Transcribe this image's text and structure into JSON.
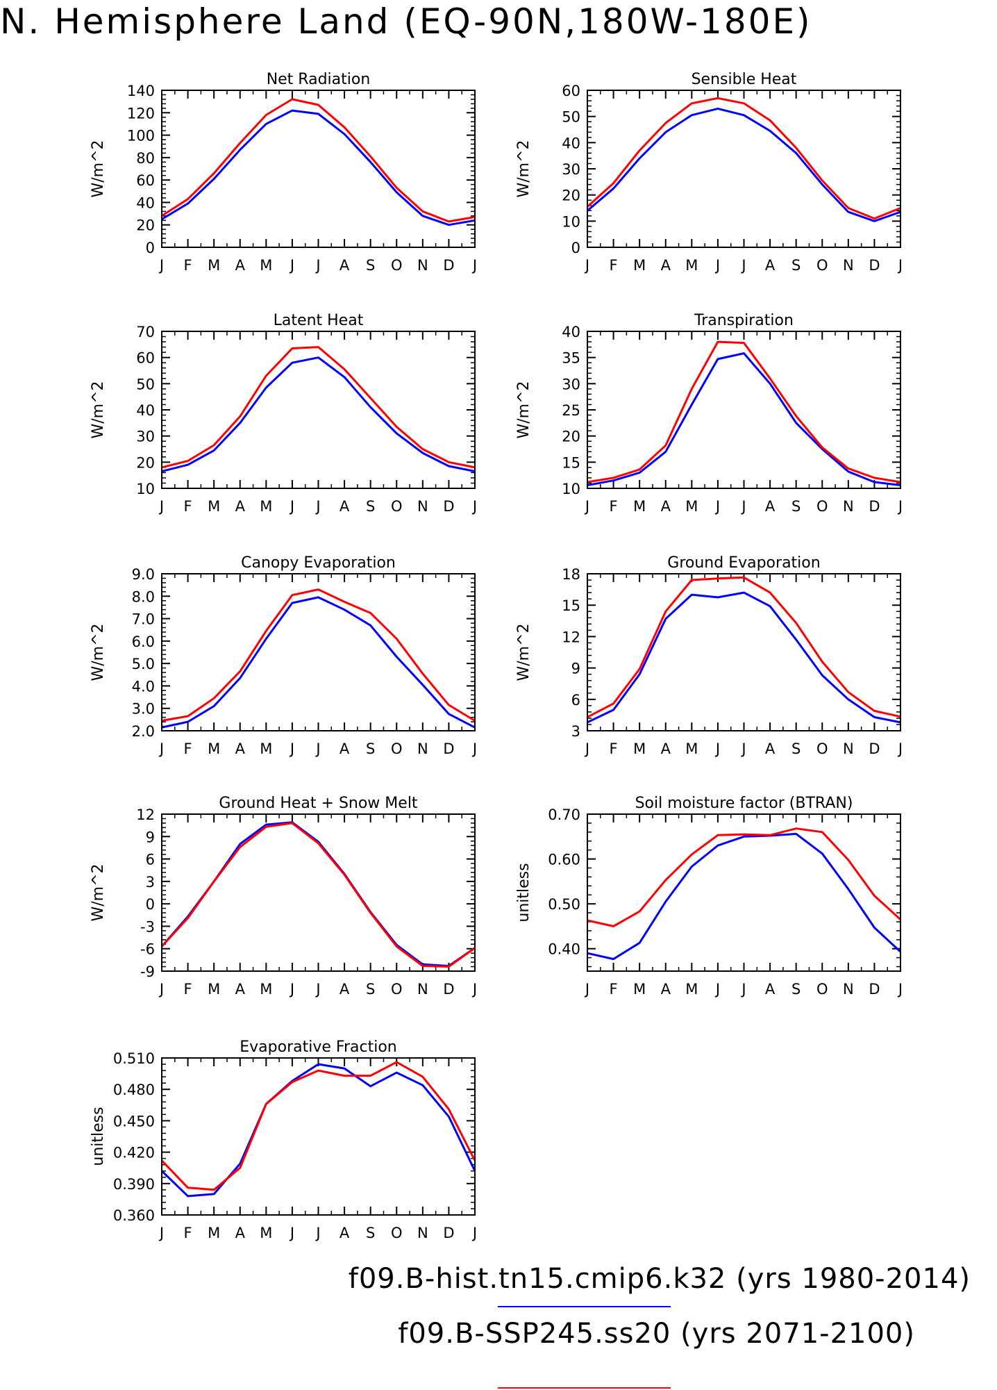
{
  "title": "N. Hemisphere Land (EQ-90N,180W-180E)",
  "legend": [
    {
      "label": "f09.B-hist.tn15.cmip6.k32 (yrs 1980-2014)",
      "color": "#0000ff"
    },
    {
      "label": "f09.B-SSP245.ss20 (yrs 2071-2100)",
      "color": "#ff0000"
    }
  ],
  "colors": {
    "historical": "#0000ff",
    "future": "#ff0000",
    "axis": "#000000"
  },
  "chart_data": [
    {
      "type": "line",
      "title": "Net Radiation",
      "ylabel": "W/m^2",
      "categories": [
        "J",
        "F",
        "M",
        "A",
        "M",
        "J",
        "J",
        "A",
        "S",
        "O",
        "N",
        "D",
        "J"
      ],
      "ylim": [
        0,
        140
      ],
      "yticks": [
        "0",
        "20",
        "40",
        "60",
        "80",
        "100",
        "120",
        "140"
      ],
      "series": [
        {
          "values": [
            25,
            39,
            61,
            87,
            110,
            122,
            119,
            101,
            76,
            49,
            28,
            20,
            24
          ]
        },
        {
          "values": [
            28,
            43,
            66,
            93,
            118,
            132,
            127,
            107,
            81,
            53,
            32,
            23,
            27
          ]
        }
      ]
    },
    {
      "type": "line",
      "title": "Sensible Heat",
      "ylabel": "W/m^2",
      "categories": [
        "J",
        "F",
        "M",
        "A",
        "M",
        "J",
        "J",
        "A",
        "S",
        "O",
        "N",
        "D",
        "J"
      ],
      "ylim": [
        0,
        60
      ],
      "yticks": [
        "0",
        "10",
        "20",
        "30",
        "40",
        "50",
        "60"
      ],
      "series": [
        {
          "values": [
            14,
            22.5,
            34,
            44,
            50.5,
            53,
            50.5,
            44.5,
            36,
            24,
            13.5,
            10,
            13.5
          ]
        },
        {
          "values": [
            15.5,
            24.5,
            37,
            47.5,
            55,
            57,
            55,
            48.5,
            38,
            25.5,
            15,
            11,
            15
          ]
        }
      ]
    },
    {
      "type": "line",
      "title": "Latent Heat",
      "ylabel": "W/m^2",
      "categories": [
        "J",
        "F",
        "M",
        "A",
        "M",
        "J",
        "J",
        "A",
        "S",
        "O",
        "N",
        "D",
        "J"
      ],
      "ylim": [
        10,
        70
      ],
      "yticks": [
        "10",
        "20",
        "30",
        "40",
        "50",
        "60",
        "70"
      ],
      "series": [
        {
          "values": [
            16.5,
            19,
            24.5,
            35,
            48.5,
            58,
            60,
            52.5,
            41,
            31,
            23.5,
            18.5,
            16.5
          ]
        },
        {
          "values": [
            18,
            20.5,
            26.5,
            37.5,
            53,
            63.5,
            64,
            55.5,
            44.5,
            33.5,
            25,
            20,
            18
          ]
        }
      ]
    },
    {
      "type": "line",
      "title": "Transpiration",
      "ylabel": "W/m^2",
      "categories": [
        "J",
        "F",
        "M",
        "A",
        "M",
        "J",
        "J",
        "A",
        "S",
        "O",
        "N",
        "D",
        "J"
      ],
      "ylim": [
        10,
        40
      ],
      "yticks": [
        "10",
        "15",
        "20",
        "25",
        "30",
        "35",
        "40"
      ],
      "series": [
        {
          "values": [
            10.6,
            11.5,
            13,
            17,
            26,
            34.7,
            35.8,
            30,
            22.5,
            17.5,
            13.2,
            11.2,
            10.6
          ]
        },
        {
          "values": [
            11.2,
            12,
            13.6,
            18.2,
            29,
            38,
            37.8,
            31,
            23.8,
            17.8,
            13.8,
            12,
            11.2
          ]
        }
      ]
    },
    {
      "type": "line",
      "title": "Canopy Evaporation",
      "ylabel": "W/m^2",
      "categories": [
        "J",
        "F",
        "M",
        "A",
        "M",
        "J",
        "J",
        "A",
        "S",
        "O",
        "N",
        "D",
        "J"
      ],
      "ylim": [
        2.0,
        9.0
      ],
      "yticks": [
        "2.0",
        "3.0",
        "4.0",
        "5.0",
        "6.0",
        "7.0",
        "8.0",
        "9.0"
      ],
      "series": [
        {
          "values": [
            2.15,
            2.4,
            3.1,
            4.35,
            6.1,
            7.7,
            7.95,
            7.4,
            6.7,
            5.3,
            4.05,
            2.75,
            2.15
          ]
        },
        {
          "values": [
            2.45,
            2.65,
            3.45,
            4.65,
            6.45,
            8.05,
            8.3,
            7.75,
            7.25,
            6.1,
            4.55,
            3.15,
            2.45
          ]
        }
      ]
    },
    {
      "type": "line",
      "title": "Ground Evaporation",
      "ylabel": "W/m^2",
      "categories": [
        "J",
        "F",
        "M",
        "A",
        "M",
        "J",
        "J",
        "A",
        "S",
        "O",
        "N",
        "D",
        "J"
      ],
      "ylim": [
        3,
        18
      ],
      "yticks": [
        "3",
        "6",
        "9",
        "12",
        "15",
        "18"
      ],
      "series": [
        {
          "values": [
            3.8,
            5,
            8.4,
            13.7,
            16,
            15.75,
            16.2,
            14.9,
            11.7,
            8.3,
            6,
            4.3,
            3.8
          ]
        },
        {
          "values": [
            4.3,
            5.6,
            8.9,
            14.4,
            17.4,
            17.55,
            17.65,
            16.2,
            13.3,
            9.6,
            6.7,
            4.9,
            4.35
          ]
        }
      ]
    },
    {
      "type": "line",
      "title": "Ground Heat + Snow Melt",
      "ylabel": "W/m^2",
      "categories": [
        "J",
        "F",
        "M",
        "A",
        "M",
        "J",
        "J",
        "A",
        "S",
        "O",
        "N",
        "D",
        "J"
      ],
      "ylim": [
        -9,
        12
      ],
      "yticks": [
        "-9",
        "-6",
        "-3",
        "0",
        "3",
        "6",
        "9",
        "12"
      ],
      "series": [
        {
          "values": [
            -5.7,
            -1.7,
            3,
            8,
            10.6,
            10.9,
            8.3,
            4,
            -1.1,
            -5.5,
            -8.1,
            -8.3,
            -5.9
          ]
        },
        {
          "values": [
            -5.7,
            -1.9,
            3,
            7.6,
            10.3,
            10.8,
            8.1,
            3.9,
            -1.2,
            -5.7,
            -8.3,
            -8.4,
            -5.9
          ]
        }
      ]
    },
    {
      "type": "line",
      "title": "Soil moisture factor (BTRAN)",
      "ylabel": "unitless",
      "categories": [
        "J",
        "F",
        "M",
        "A",
        "M",
        "J",
        "J",
        "A",
        "S",
        "O",
        "N",
        "D",
        "J"
      ],
      "ylim": [
        0.35,
        0.7
      ],
      "yticks": [
        "0.40",
        "0.50",
        "0.60",
        "0.70"
      ],
      "series": [
        {
          "values": [
            0.39,
            0.377,
            0.413,
            0.505,
            0.583,
            0.63,
            0.65,
            0.652,
            0.656,
            0.612,
            0.533,
            0.447,
            0.393
          ]
        },
        {
          "values": [
            0.463,
            0.45,
            0.483,
            0.553,
            0.61,
            0.653,
            0.655,
            0.653,
            0.668,
            0.66,
            0.598,
            0.518,
            0.465
          ]
        }
      ]
    },
    {
      "type": "line",
      "title": "Evaporative Fraction",
      "ylabel": "unitless",
      "categories": [
        "J",
        "F",
        "M",
        "A",
        "M",
        "J",
        "J",
        "A",
        "S",
        "O",
        "N",
        "D",
        "J"
      ],
      "ylim": [
        0.36,
        0.51
      ],
      "yticks": [
        "0.360",
        "0.390",
        "0.420",
        "0.450",
        "0.480",
        "0.510"
      ],
      "series": [
        {
          "values": [
            0.402,
            0.378,
            0.38,
            0.409,
            0.466,
            0.488,
            0.504,
            0.5,
            0.483,
            0.496,
            0.484,
            0.454,
            0.402
          ]
        },
        {
          "values": [
            0.412,
            0.386,
            0.384,
            0.405,
            0.466,
            0.487,
            0.498,
            0.493,
            0.493,
            0.506,
            0.492,
            0.461,
            0.412
          ]
        }
      ]
    }
  ]
}
